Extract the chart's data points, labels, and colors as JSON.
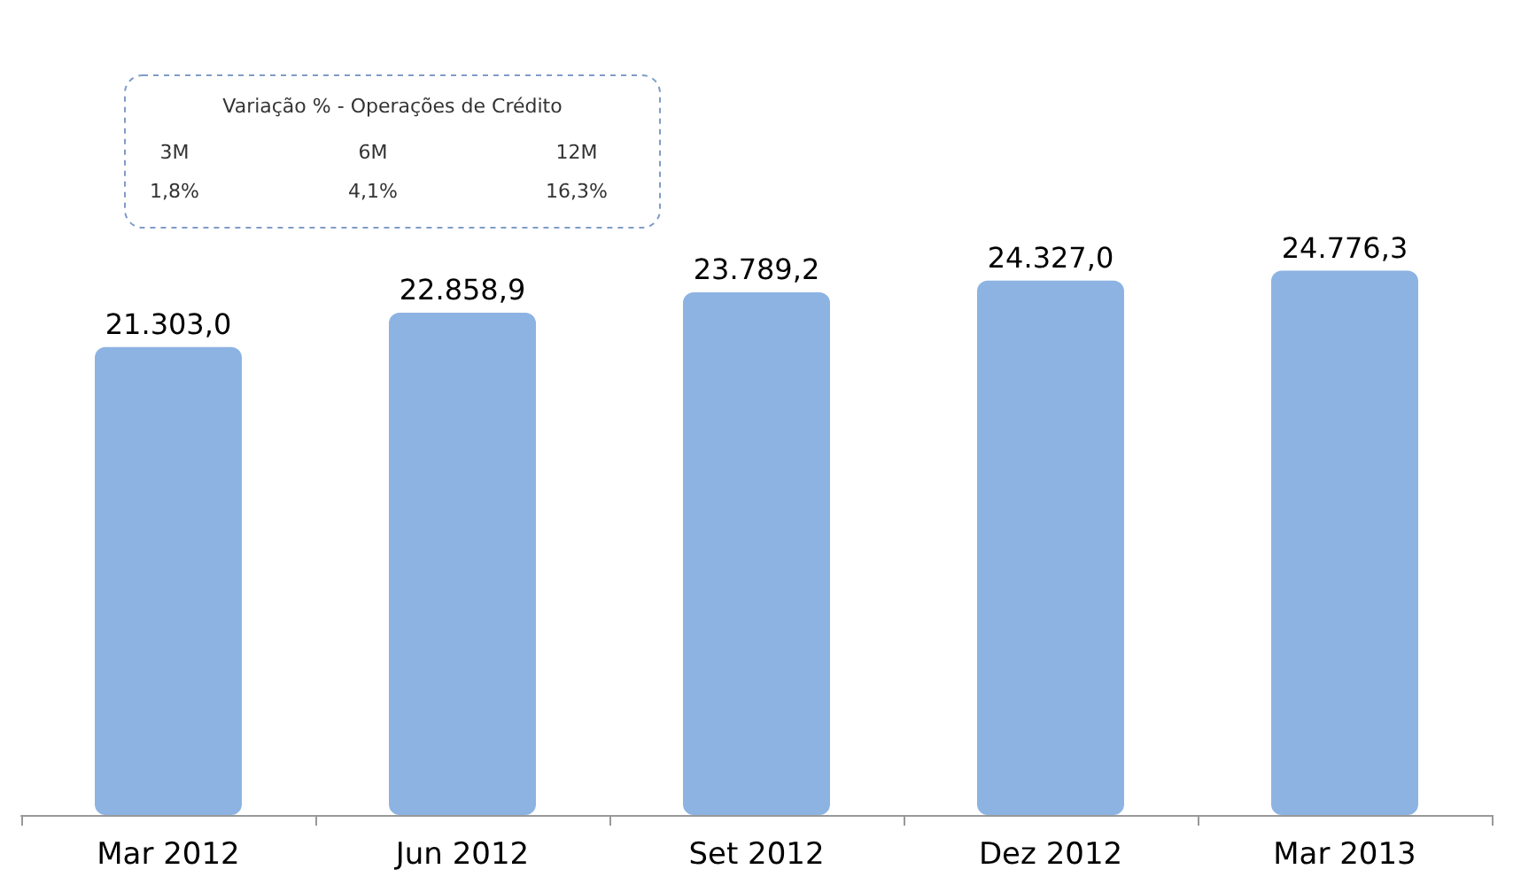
{
  "chart_data": {
    "type": "bar",
    "categories": [
      "Mar 2012",
      "Jun 2012",
      "Set 2012",
      "Dez 2012",
      "Mar 2013"
    ],
    "values": [
      21303.0,
      22858.9,
      23789.2,
      24327.0,
      24776.3
    ],
    "value_labels": [
      "21.303,0",
      "22.858,9",
      "23.789,2",
      "24.327,0",
      "24.776,3"
    ],
    "color": "#8db3e2",
    "annotations": [
      "Variação % - Operações de Crédito",
      "3M",
      "6M",
      "12M",
      "1,8%",
      "4,1%",
      "16,3%"
    ]
  }
}
